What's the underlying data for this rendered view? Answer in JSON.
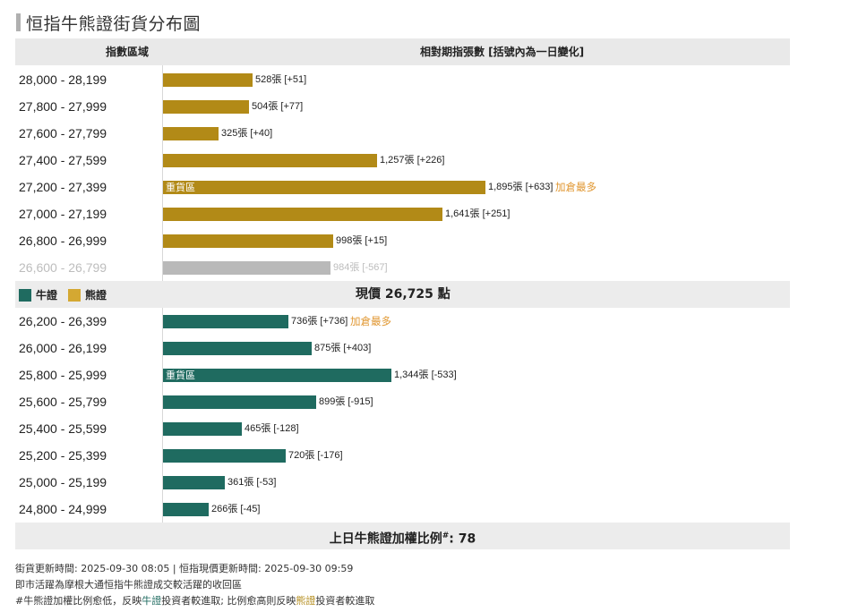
{
  "title": "恒指牛熊證街貨分布圖",
  "header": {
    "range_col": "指數區域",
    "value_col": "相對期指張數 [括號內為一日變化]"
  },
  "legend": {
    "bull_label": "牛證",
    "bear_label": "熊證",
    "bull_color": "#1f6b60",
    "bear_color": "#b28a17",
    "inactive_color": "#b9b9b9"
  },
  "price_label": "現價 26,725 點",
  "ratio_label": "上日牛熊證加權比例",
  "ratio_sup": "#",
  "ratio_value": ": 78",
  "footer": {
    "line1": "街貨更新時間: 2025-09-30 08:05   |   恒指現價更新時間: 2025-09-30 09:59",
    "line2": "即市活躍為摩根大通恒指牛熊證成交較活躍的收回區",
    "line3_a": "#牛熊證加權比例愈低，反映",
    "line3_bull": "牛證",
    "line3_b": "投資者較進取; 比例愈高則反映",
    "line3_bear": "熊證",
    "line3_c": "投資者較進取"
  },
  "chart_data": {
    "type": "bar",
    "orientation": "horizontal",
    "value_unit": "張",
    "max_scale": 2000,
    "bear_rows": [
      {
        "range": "28,000 - 28,199",
        "value": 528,
        "value_text": "528張",
        "change_text": "[+51]"
      },
      {
        "range": "27,800 - 27,999",
        "value": 504,
        "value_text": "504張",
        "change_text": "[+77]"
      },
      {
        "range": "27,600 - 27,799",
        "value": 325,
        "value_text": "325張",
        "change_text": "[+40]"
      },
      {
        "range": "27,400 - 27,599",
        "value": 1257,
        "value_text": "1,257張",
        "change_text": "[+226]"
      },
      {
        "range": "27,200 - 27,399",
        "value": 1895,
        "value_text": "1,895張",
        "change_text": "[+633]",
        "inside_label": "重貨區",
        "tag": "加倉最多"
      },
      {
        "range": "27,000 - 27,199",
        "value": 1641,
        "value_text": "1,641張",
        "change_text": "[+251]"
      },
      {
        "range": "26,800 - 26,999",
        "value": 998,
        "value_text": "998張",
        "change_text": "[+15]"
      },
      {
        "range": "26,600 - 26,799",
        "value": 984,
        "value_text": "984張",
        "change_text": "[-567]",
        "dim": true
      }
    ],
    "bull_rows": [
      {
        "range": "26,200 - 26,399",
        "value": 736,
        "value_text": "736張",
        "change_text": "[+736]",
        "tag": "加倉最多"
      },
      {
        "range": "26,000 - 26,199",
        "value": 875,
        "value_text": "875張",
        "change_text": "[+403]"
      },
      {
        "range": "25,800 - 25,999",
        "value": 1344,
        "value_text": "1,344張",
        "change_text": "[-533]",
        "inside_label": "重貨區"
      },
      {
        "range": "25,600 - 25,799",
        "value": 899,
        "value_text": "899張",
        "change_text": "[-915]"
      },
      {
        "range": "25,400 - 25,599",
        "value": 465,
        "value_text": "465張",
        "change_text": "[-128]"
      },
      {
        "range": "25,200 - 25,399",
        "value": 720,
        "value_text": "720張",
        "change_text": "[-176]"
      },
      {
        "range": "25,000 - 25,199",
        "value": 361,
        "value_text": "361張",
        "change_text": "[-53]"
      },
      {
        "range": "24,800 - 24,999",
        "value": 266,
        "value_text": "266張",
        "change_text": "[-45]"
      }
    ]
  }
}
